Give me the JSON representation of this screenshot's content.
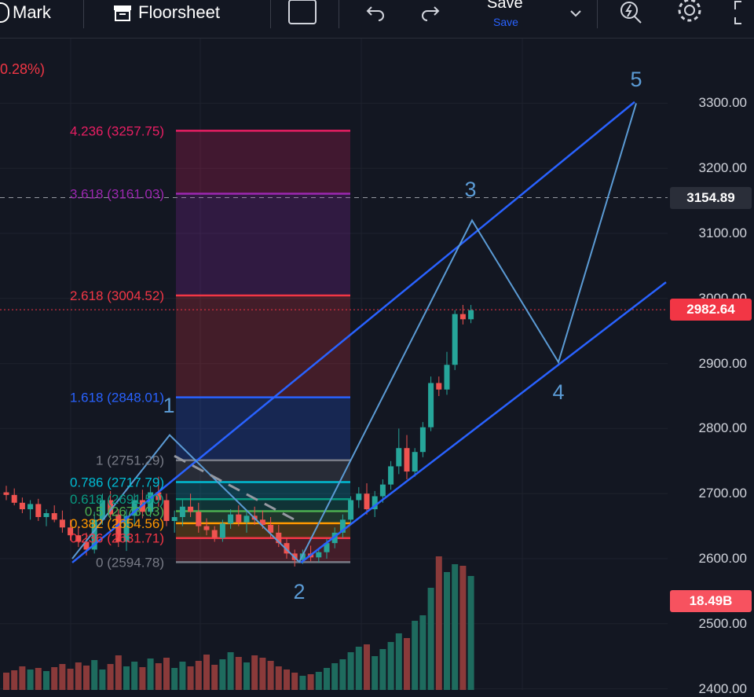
{
  "toolbar": {
    "mark_label": "Mark",
    "floorsheet_label": "Floorsheet",
    "save_label": "Save",
    "save_sub_label": "Save"
  },
  "header": {
    "change_pct": "0.28%)"
  },
  "colors": {
    "background": "#131722",
    "up": "#26a69a",
    "down": "#ef5350",
    "channel": "#2962ff",
    "wave": "#5b9bd5",
    "last_price": "#f23645"
  },
  "chart_data": {
    "type": "candlestick",
    "ylim": [
      2400,
      3340
    ],
    "y_ticks": [
      "3300.00",
      "3200.00",
      "3100.00",
      "3000.00",
      "2900.00",
      "2800.00",
      "2700.00",
      "2600.00",
      "2500.00",
      "2400.00"
    ],
    "tick_values": [
      3300,
      3200,
      3100,
      3000,
      2900,
      2800,
      2700,
      2600,
      2500,
      2400
    ],
    "current_price": {
      "value": 2982.64,
      "label": "2982.64"
    },
    "crosshair_price": {
      "value": 3154.89,
      "label": "3154.89"
    },
    "volume_label": "18.49B",
    "fib_levels": [
      {
        "value": 3257.75,
        "label": "4.236 (3257.75)",
        "color": "#e91e63"
      },
      {
        "value": 3161.03,
        "label": "3.618 (3161.03)",
        "color": "#9c27b0"
      },
      {
        "value": 3004.52,
        "label": "2.618 (3004.52)",
        "color": "#f23645"
      },
      {
        "value": 2848.01,
        "label": "1.618 (2848.01)",
        "color": "#2962ff"
      },
      {
        "value": 2751.29,
        "label": "1 (2751.29)",
        "color": "#787b86"
      },
      {
        "value": 2717.79,
        "label": "0.786 (2717.79)",
        "color": "#00bcd4"
      },
      {
        "value": 2691.5,
        "label": "0.618 (2691.50)",
        "color": "#089981"
      },
      {
        "value": 2673.03,
        "label": "0.5 (2673.03)",
        "color": "#4caf50"
      },
      {
        "value": 2654.56,
        "label": "0.382 (2654.56)",
        "color": "#ff9800"
      },
      {
        "value": 2631.71,
        "label": "0.236 (2631.71)",
        "color": "#f23645"
      },
      {
        "value": 2594.78,
        "label": "0 (2594.78)",
        "color": "#787b86"
      }
    ],
    "waves": [
      {
        "label": "1",
        "value": 2790
      },
      {
        "label": "2",
        "value": 2595
      },
      {
        "label": "3",
        "value": 3120
      },
      {
        "label": "4",
        "value": 2902
      },
      {
        "label": "5",
        "value": 3300
      }
    ],
    "candles": [
      [
        2702,
        2712,
        2690,
        2698
      ],
      [
        2698,
        2708,
        2682,
        2686
      ],
      [
        2686,
        2694,
        2670,
        2676
      ],
      [
        2676,
        2690,
        2660,
        2684
      ],
      [
        2684,
        2692,
        2658,
        2664
      ],
      [
        2664,
        2676,
        2650,
        2670
      ],
      [
        2670,
        2682,
        2656,
        2660
      ],
      [
        2660,
        2674,
        2640,
        2648
      ],
      [
        2648,
        2660,
        2628,
        2636
      ],
      [
        2636,
        2650,
        2618,
        2626
      ],
      [
        2626,
        2640,
        2605,
        2614
      ],
      [
        2614,
        2672,
        2608,
        2660
      ],
      [
        2660,
        2700,
        2652,
        2690
      ],
      [
        2690,
        2704,
        2660,
        2668
      ],
      [
        2668,
        2676,
        2618,
        2626
      ],
      [
        2626,
        2676,
        2612,
        2666
      ],
      [
        2666,
        2700,
        2650,
        2690
      ],
      [
        2690,
        2706,
        2662,
        2672
      ],
      [
        2672,
        2712,
        2664,
        2702
      ],
      [
        2702,
        2726,
        2680,
        2690
      ],
      [
        2690,
        2700,
        2650,
        2658
      ],
      [
        2658,
        2674,
        2640,
        2664
      ],
      [
        2664,
        2690,
        2650,
        2680
      ],
      [
        2680,
        2700,
        2664,
        2672
      ],
      [
        2672,
        2686,
        2640,
        2650
      ],
      [
        2650,
        2662,
        2636,
        2644
      ],
      [
        2644,
        2650,
        2626,
        2632
      ],
      [
        2632,
        2660,
        2626,
        2654
      ],
      [
        2654,
        2676,
        2646,
        2668
      ],
      [
        2668,
        2682,
        2650,
        2656
      ],
      [
        2656,
        2672,
        2640,
        2666
      ],
      [
        2666,
        2680,
        2652,
        2660
      ],
      [
        2660,
        2674,
        2646,
        2652
      ],
      [
        2652,
        2664,
        2632,
        2640
      ],
      [
        2640,
        2652,
        2618,
        2624
      ],
      [
        2624,
        2632,
        2600,
        2608
      ],
      [
        2608,
        2614,
        2588,
        2598
      ],
      [
        2598,
        2614,
        2592,
        2608
      ],
      [
        2608,
        2620,
        2596,
        2602
      ],
      [
        2602,
        2614,
        2594,
        2610
      ],
      [
        2610,
        2630,
        2600,
        2624
      ],
      [
        2624,
        2648,
        2616,
        2640
      ],
      [
        2640,
        2668,
        2632,
        2660
      ],
      [
        2660,
        2696,
        2652,
        2690
      ],
      [
        2690,
        2710,
        2678,
        2700
      ],
      [
        2700,
        2716,
        2668,
        2676
      ],
      [
        2676,
        2704,
        2664,
        2696
      ],
      [
        2696,
        2722,
        2686,
        2714
      ],
      [
        2714,
        2750,
        2706,
        2742
      ],
      [
        2742,
        2800,
        2730,
        2770
      ],
      [
        2770,
        2790,
        2722,
        2734
      ],
      [
        2734,
        2770,
        2726,
        2764
      ],
      [
        2764,
        2810,
        2756,
        2802
      ],
      [
        2802,
        2880,
        2796,
        2870
      ],
      [
        2870,
        2880,
        2850,
        2860
      ],
      [
        2860,
        2918,
        2852,
        2898
      ],
      [
        2898,
        2982,
        2890,
        2976
      ],
      [
        2976,
        2990,
        2960,
        2968
      ],
      [
        2968,
        2990,
        2962,
        2982
      ]
    ],
    "volumes": [
      22,
      25,
      30,
      26,
      28,
      24,
      29,
      33,
      27,
      35,
      31,
      38,
      26,
      33,
      44,
      30,
      36,
      29,
      40,
      34,
      41,
      28,
      36,
      30,
      37,
      45,
      32,
      39,
      48,
      42,
      35,
      44,
      41,
      37,
      30,
      26,
      22,
      18,
      20,
      23,
      28,
      34,
      39,
      48,
      55,
      58,
      43,
      52,
      61,
      72,
      66,
      88,
      95,
      130,
      170,
      150,
      160,
      158,
      145
    ]
  }
}
